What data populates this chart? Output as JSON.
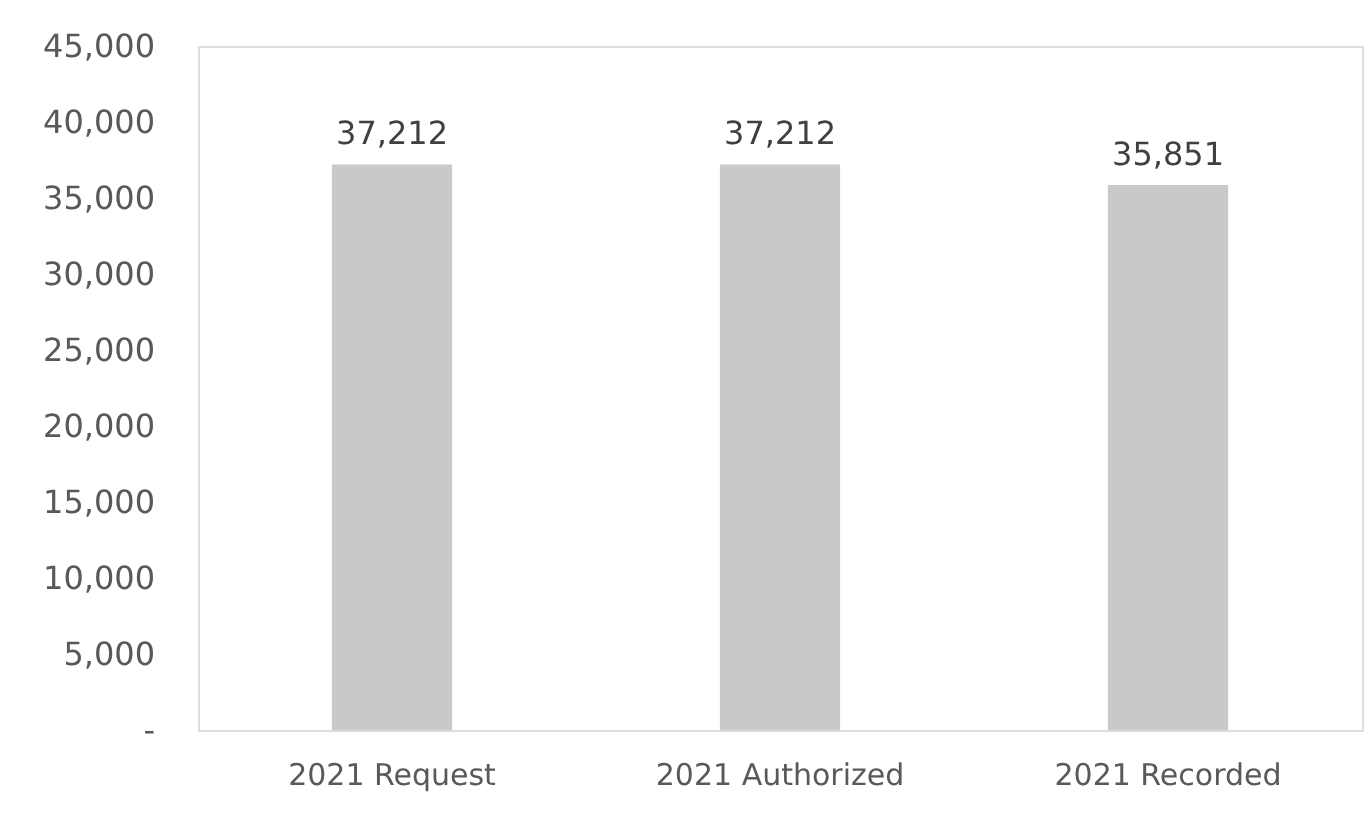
{
  "chart_data": {
    "type": "bar",
    "categories": [
      "2021 Request",
      "2021 Authorized",
      "2021 Recorded"
    ],
    "values": [
      37212,
      37212,
      35851
    ],
    "color": "#c9c9c9",
    "value_labels": [
      "37,212",
      "37,212",
      "35,851"
    ],
    "ylim": [
      0,
      45000
    ],
    "yticks": [
      {
        "value": 0,
        "label": "-"
      },
      {
        "value": 5000,
        "label": "5,000"
      },
      {
        "value": 10000,
        "label": "10,000"
      },
      {
        "value": 15000,
        "label": "15,000"
      },
      {
        "value": 20000,
        "label": "20,000"
      },
      {
        "value": 25000,
        "label": "25,000"
      },
      {
        "value": 30000,
        "label": "30,000"
      },
      {
        "value": 35000,
        "label": "35,000"
      },
      {
        "value": 40000,
        "label": "40,000"
      },
      {
        "value": 45000,
        "label": "45,000"
      }
    ]
  }
}
